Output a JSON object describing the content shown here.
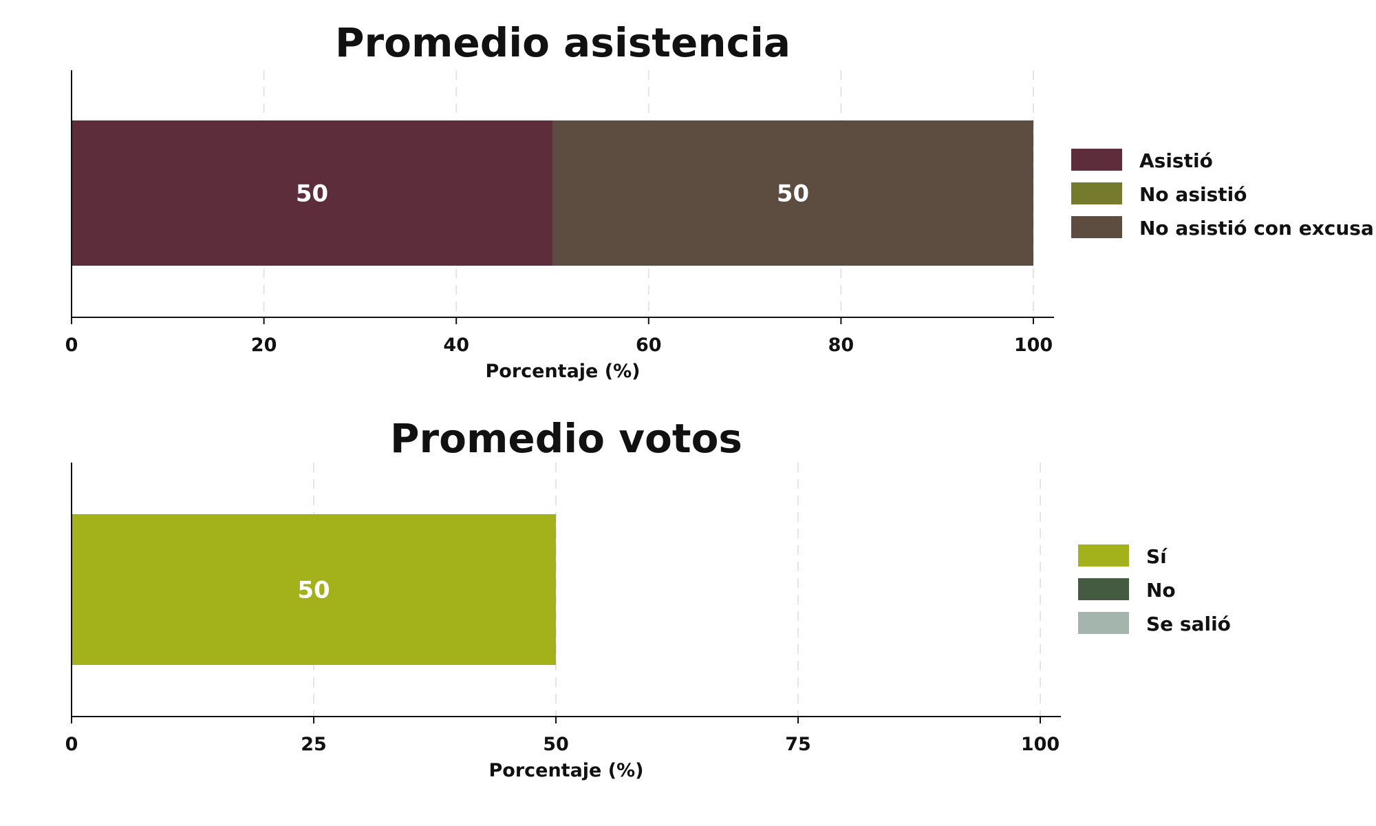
{
  "chart_data": [
    {
      "type": "bar",
      "orientation": "horizontal-stacked",
      "title": "Promedio asistencia",
      "xlabel": "Porcentaje (%)",
      "xlim": [
        0,
        100
      ],
      "xticks": [
        0,
        20,
        40,
        60,
        80,
        100
      ],
      "grid": true,
      "legend_position": "right",
      "series": [
        {
          "name": "Asistió",
          "value": 50,
          "color": "#5e2d3b"
        },
        {
          "name": "No asistió",
          "value": 0,
          "color": "#767a2d"
        },
        {
          "name": "No asistió con excusa",
          "value": 50,
          "color": "#5c4d40"
        }
      ],
      "data_labels": [
        "50",
        "50"
      ]
    },
    {
      "type": "bar",
      "orientation": "horizontal-stacked",
      "title": "Promedio votos",
      "xlabel": "Porcentaje (%)",
      "xlim": [
        0,
        100
      ],
      "xticks": [
        0,
        25,
        50,
        75,
        100
      ],
      "grid": true,
      "legend_position": "right",
      "series": [
        {
          "name": "Sí",
          "value": 50,
          "color": "#a3b11a"
        },
        {
          "name": "No",
          "value": 0,
          "color": "#445b42"
        },
        {
          "name": "Se salió",
          "value": 0,
          "color": "#a3b5ad"
        }
      ],
      "data_labels": [
        "50"
      ]
    }
  ]
}
